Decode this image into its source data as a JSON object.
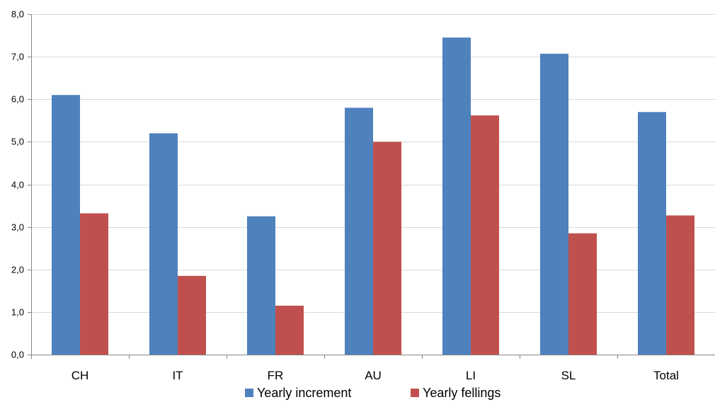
{
  "chart_data": {
    "type": "bar",
    "categories": [
      "CH",
      "IT",
      "FR",
      "AU",
      "LI",
      "SL",
      "Total"
    ],
    "series": [
      {
        "name": "Yearly increment",
        "color": "#4f81bd",
        "values": [
          6.1,
          5.2,
          3.25,
          5.8,
          7.45,
          7.07,
          5.7
        ]
      },
      {
        "name": "Yearly fellings",
        "color": "#c0504d",
        "values": [
          3.32,
          1.85,
          1.15,
          5.0,
          5.62,
          2.85,
          3.27
        ]
      }
    ],
    "yticks": [
      "0,0",
      "1,0",
      "2,0",
      "3,0",
      "4,0",
      "5,0",
      "6,0",
      "7,0",
      "8,0"
    ],
    "ylim": [
      0,
      8
    ],
    "grid": true,
    "legend_position": "bottom",
    "title": "",
    "xlabel": "",
    "ylabel": ""
  }
}
